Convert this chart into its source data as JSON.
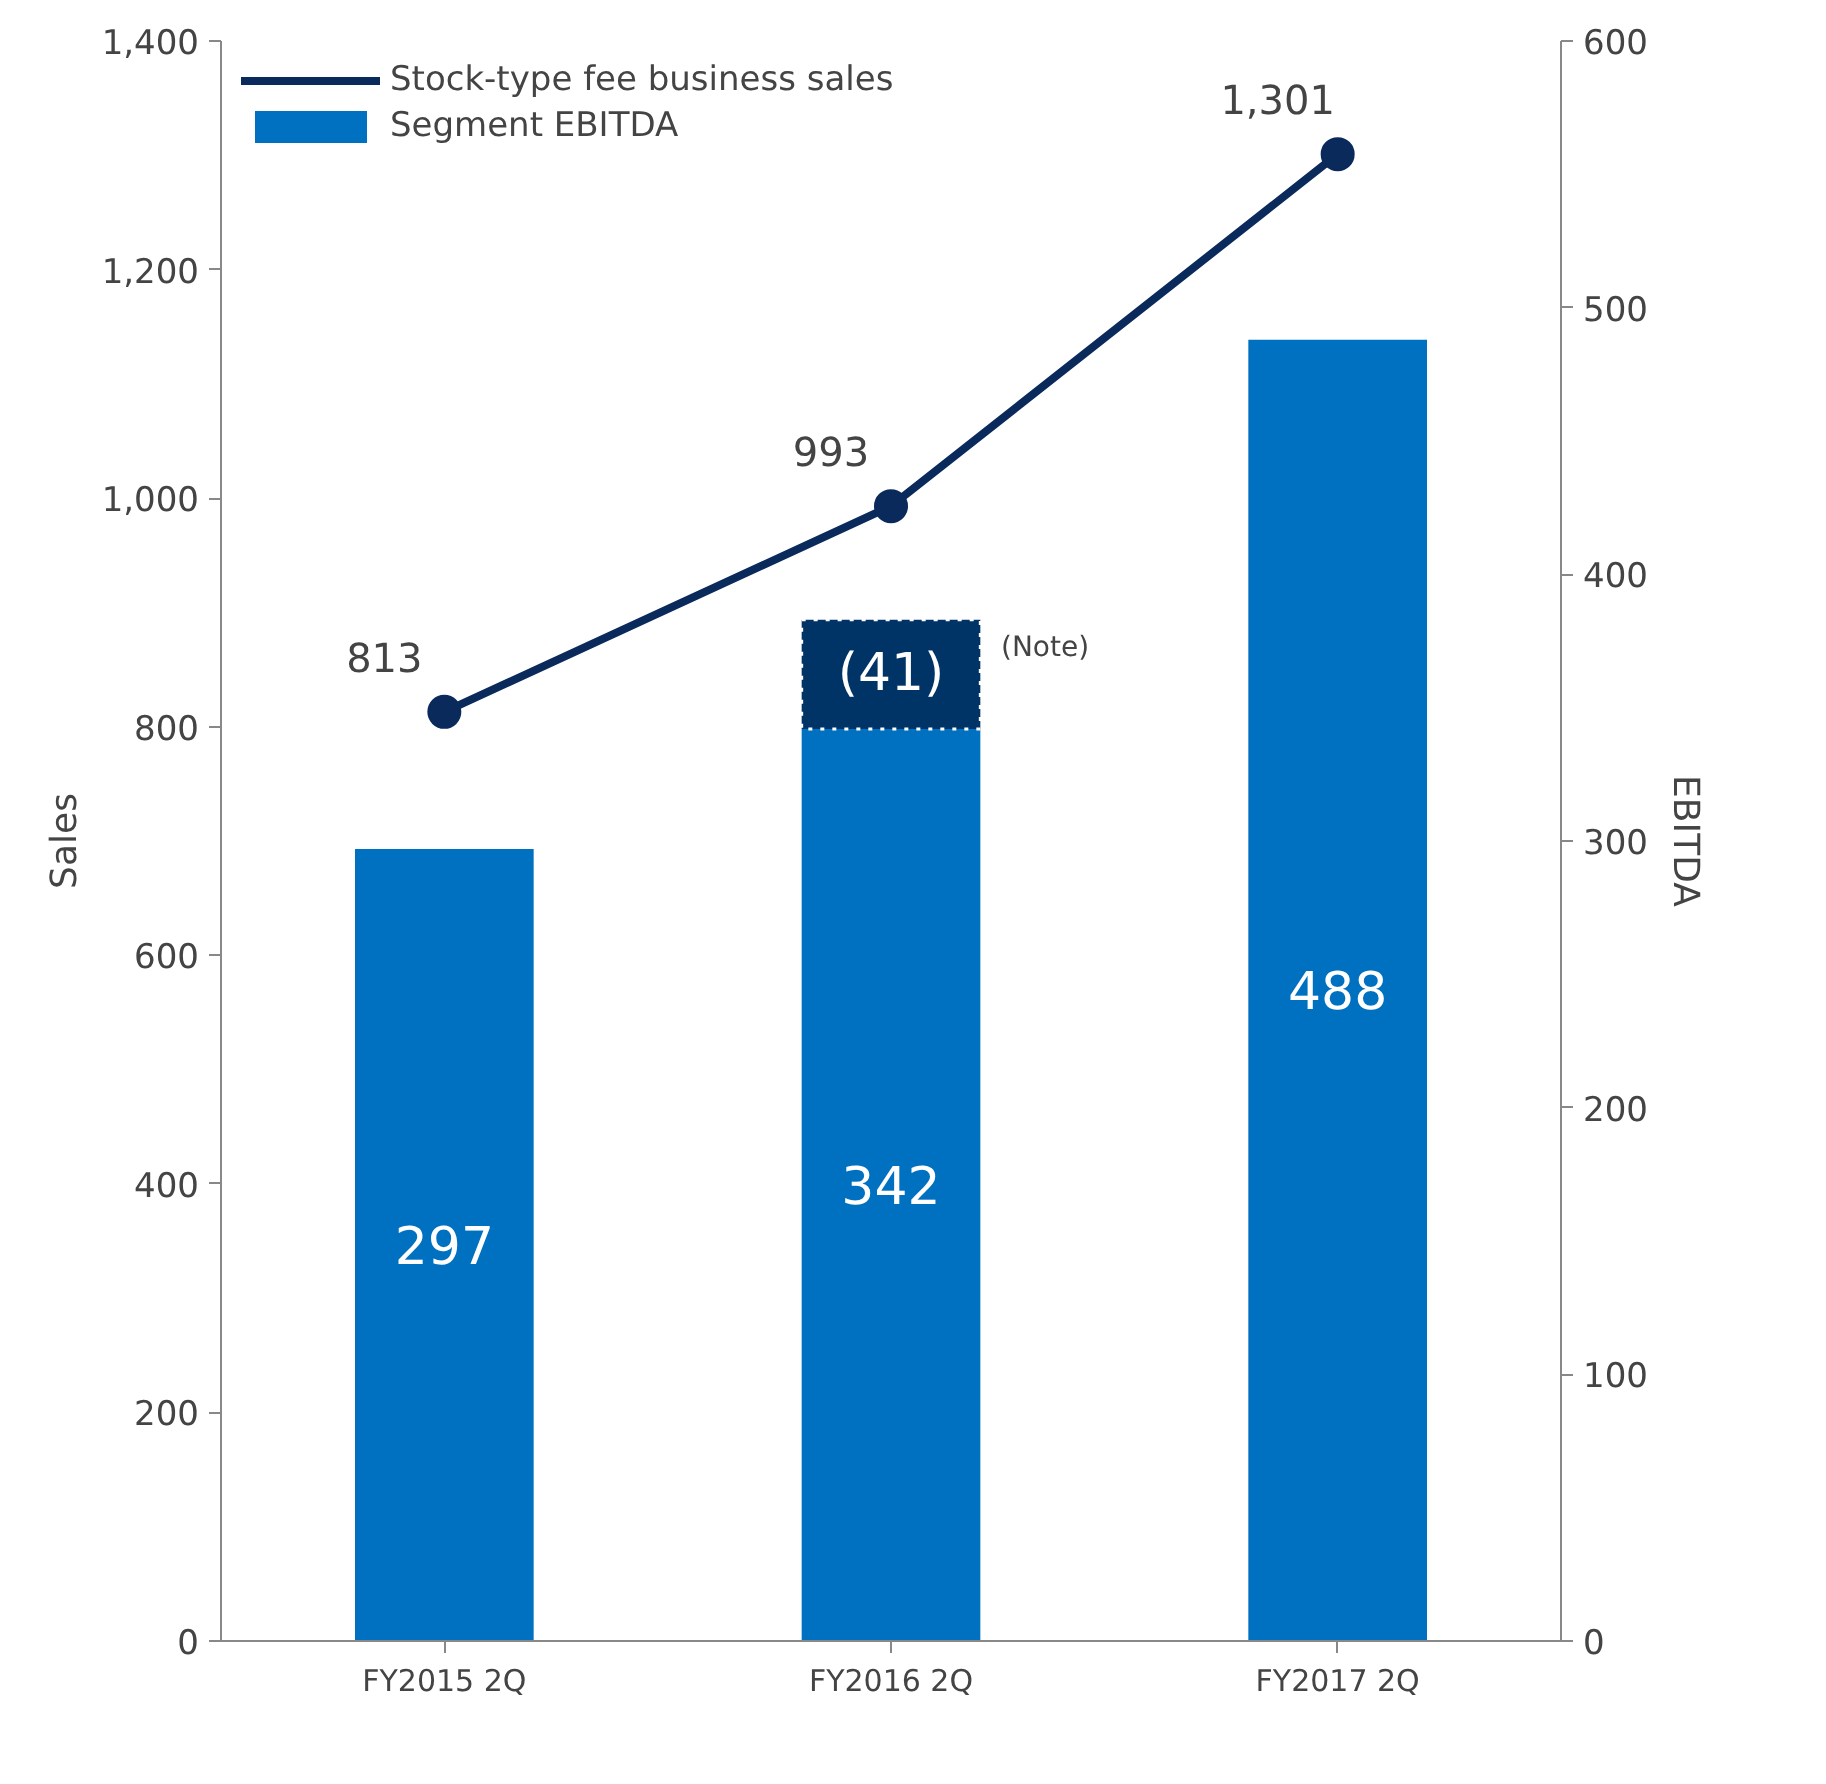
{
  "chart_data": {
    "type": "bar",
    "stacked": true,
    "categories": [
      "FY2015 2Q",
      "FY2016 2Q",
      "FY2017 2Q"
    ],
    "series": [
      {
        "name": "Stock-type fee business sales",
        "type": "line",
        "color": "#0a2a5c",
        "values": [
          813,
          993,
          1301
        ],
        "value_labels": [
          "813",
          "993",
          "1,301"
        ],
        "marker": "circle"
      },
      {
        "name": "Segment EBITDA",
        "axis": "y2",
        "color": "#0070c0",
        "values": [
          297,
          342,
          488
        ],
        "value_labels": [
          "297",
          "342",
          "488"
        ]
      },
      {
        "axis": "y2",
        "color": "#003366",
        "values": [
          null,
          41,
          null
        ],
        "value_labels": [
          null,
          "(41)",
          null
        ],
        "line_style": "dotted"
      }
    ],
    "ylabel": "Sales",
    "y2label": "EBITDA",
    "ylim": [
      0,
      1400
    ],
    "yticks": [
      {
        "value": 0,
        "label": "0"
      },
      {
        "value": 200,
        "label": "200"
      },
      {
        "value": 400,
        "label": "400"
      },
      {
        "value": 600,
        "label": "600"
      },
      {
        "value": 800,
        "label": "800"
      },
      {
        "value": 1000,
        "label": "1,000"
      },
      {
        "value": 1200,
        "label": "1,200"
      },
      {
        "value": 1400,
        "label": "1,400"
      }
    ],
    "y2lim": [
      0,
      600
    ],
    "y2ticks": [
      0,
      100,
      200,
      300,
      400,
      500,
      600
    ],
    "annotations": [
      "(Note)"
    ],
    "grid": false,
    "legend": "top left"
  }
}
